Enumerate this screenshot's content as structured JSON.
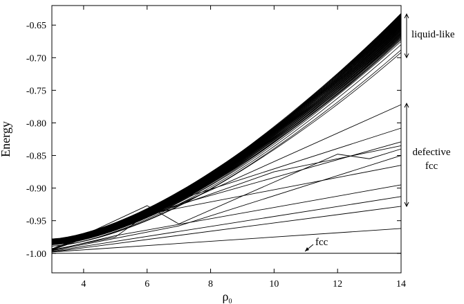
{
  "chart_data": {
    "type": "line",
    "title": "",
    "xlabel": "ρ",
    "xlabel_subscript": "0",
    "ylabel": "Energy",
    "xlim": [
      3,
      14
    ],
    "ylim": [
      -1.03,
      -0.62
    ],
    "grid": false,
    "xticks": [
      {
        "value": 4,
        "label": "4"
      },
      {
        "value": 6,
        "label": "6"
      },
      {
        "value": 8,
        "label": "8"
      },
      {
        "value": 10,
        "label": "10"
      },
      {
        "value": 12,
        "label": "12"
      },
      {
        "value": 14,
        "label": "14"
      }
    ],
    "yticks": [
      {
        "value": -0.65,
        "label": "-0.65"
      },
      {
        "value": -0.7,
        "label": "-0.70"
      },
      {
        "value": -0.75,
        "label": "-0.75"
      },
      {
        "value": -0.8,
        "label": "-0.80"
      },
      {
        "value": -0.85,
        "label": "-0.85"
      },
      {
        "value": -0.9,
        "label": "-0.90"
      },
      {
        "value": -0.95,
        "label": "-0.95"
      },
      {
        "value": -1.0,
        "label": "-1.00"
      }
    ],
    "fcc_level": -1.0,
    "liquid_like_band": {
      "curve_count": 60,
      "start_range": [
        -0.987,
        -0.978
      ],
      "end_range": [
        -0.675,
        -0.632
      ],
      "low_end_curves": [
        -0.68,
        -0.688,
        -0.692
      ]
    },
    "defective_curves": [
      {
        "points": [
          [
            3,
            -0.993
          ],
          [
            7,
            -0.925
          ],
          [
            14,
            -0.772
          ]
        ]
      },
      {
        "points": [
          [
            3,
            -0.994
          ],
          [
            6,
            -0.933
          ],
          [
            14,
            -0.808
          ]
        ]
      },
      {
        "points": [
          [
            3,
            -0.994
          ],
          [
            7,
            -0.925
          ],
          [
            14,
            -0.829
          ]
        ]
      },
      {
        "points": [
          [
            3,
            -0.995
          ],
          [
            10,
            -0.875
          ],
          [
            14,
            -0.835
          ]
        ]
      },
      {
        "points": [
          [
            3,
            -0.995
          ],
          [
            6,
            -0.927
          ],
          [
            7,
            -0.955
          ],
          [
            12,
            -0.848
          ],
          [
            13,
            -0.855
          ],
          [
            14,
            -0.84
          ]
        ]
      },
      {
        "points": [
          [
            3,
            -0.996
          ],
          [
            7,
            -0.958
          ],
          [
            14,
            -0.85
          ]
        ]
      },
      {
        "points": [
          [
            3,
            -0.995
          ],
          [
            5,
            -0.975
          ],
          [
            6,
            -0.94
          ],
          [
            14,
            -0.865
          ]
        ]
      },
      {
        "points": [
          [
            3,
            -0.996
          ],
          [
            5,
            -0.973
          ],
          [
            14,
            -0.895
          ]
        ]
      },
      {
        "points": [
          [
            3,
            -0.997
          ],
          [
            14,
            -0.913
          ]
        ]
      },
      {
        "points": [
          [
            3,
            -0.998
          ],
          [
            14,
            -0.928
          ]
        ]
      },
      {
        "points": [
          [
            3,
            -0.998
          ],
          [
            14,
            -0.962
          ]
        ]
      }
    ],
    "annotations": {
      "liquid_like": {
        "text": "liquid-like",
        "y_range": [
          -0.633,
          -0.7
        ]
      },
      "defective_fcc": {
        "lines": [
          "defective",
          "fcc"
        ],
        "y_range": [
          -0.77,
          -0.928
        ]
      },
      "fcc": {
        "text": "fcc"
      }
    }
  }
}
